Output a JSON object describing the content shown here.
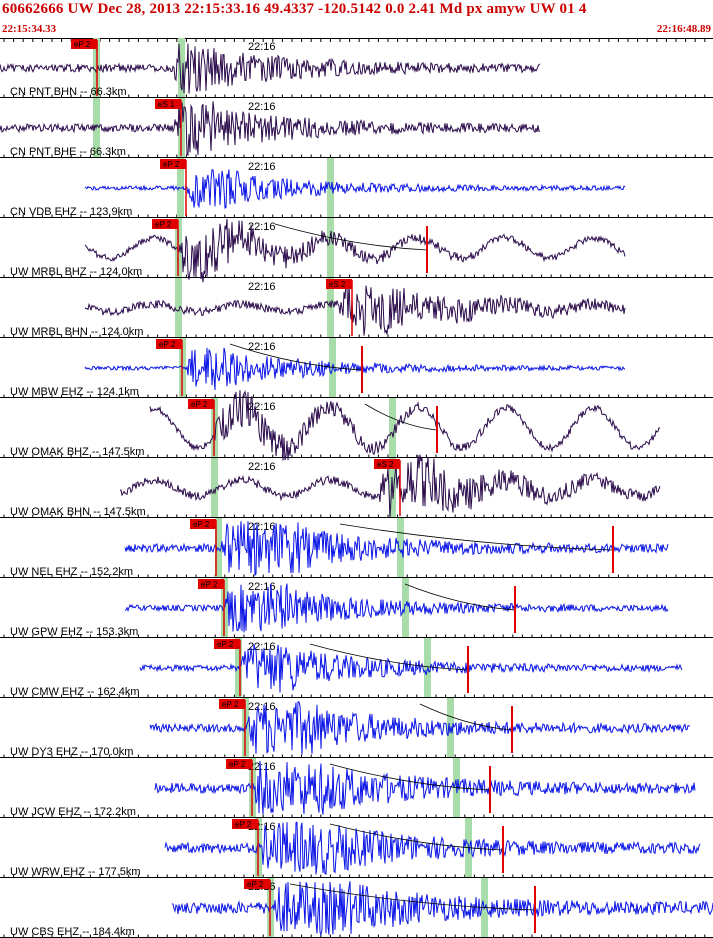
{
  "event": {
    "title": "60662666 UW Dec 28, 2013 22:15:33.16   49.4337 -120.5142  0.0 2.41 Md px amyw UW 01   4",
    "start_time": "22:15:34.33",
    "end_time": "22:16:48.89",
    "minute_mark": "22:16"
  },
  "colors": {
    "title": "#cc0000",
    "broadband": "#2a0a4a",
    "short_period": "#0a14e6",
    "pick": "#e00000",
    "theoretical": "#a8dca8"
  },
  "traces": [
    {
      "label": "CN PNT BHN -- 66.3km",
      "pick": "eP 2",
      "color": "broadband"
    },
    {
      "label": "CN PNT BHE -- 66.3km",
      "pick": "eS 1",
      "color": "broadband"
    },
    {
      "label": "CN VDB EHZ -- 123.9km",
      "pick": "eP 2",
      "color": "short_period"
    },
    {
      "label": "UW MRBL BHZ -- 124.0km",
      "pick": "eP 2",
      "color": "broadband"
    },
    {
      "label": "UW MRBL BHN -- 124.0km",
      "pick": "eS 2",
      "color": "broadband"
    },
    {
      "label": "UW MBW EHZ -- 124.1km",
      "pick": "eP 2",
      "color": "short_period"
    },
    {
      "label": "UW OMAK BHZ -- 147.5km",
      "pick": "eP 2",
      "color": "broadband"
    },
    {
      "label": "UW OMAK BHN -- 147.5km",
      "pick": "eS 2",
      "color": "broadband"
    },
    {
      "label": "UW NEL EHZ -- 152.2km",
      "pick": "eP 2",
      "color": "short_period"
    },
    {
      "label": "UW GPW EHZ -- 153.3km",
      "pick": "eP 2",
      "color": "short_period"
    },
    {
      "label": "UW CMW EHZ -- 162.4km",
      "pick": "eP 2",
      "color": "short_period"
    },
    {
      "label": "UW DY3 EHZ -- 170.0km",
      "pick": "eP 2",
      "color": "short_period"
    },
    {
      "label": "UW JCW EHZ -- 172.2km",
      "pick": "eP 2",
      "color": "short_period"
    },
    {
      "label": "UW WRW EHZ -- 177.5km",
      "pick": "eP 2",
      "color": "short_period"
    },
    {
      "label": "UW CBS EHZ -- 184.4km",
      "pick": "eP 2",
      "color": "short_period"
    }
  ]
}
